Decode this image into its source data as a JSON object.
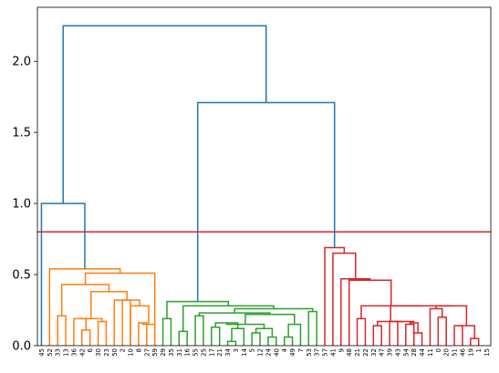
{
  "chart_data": {
    "type": "dendrogram",
    "title": "",
    "xlabel": "",
    "ylabel": "",
    "ylim": [
      0,
      2.38
    ],
    "yticks": [
      0.0,
      0.5,
      1.0,
      1.5,
      2.0
    ],
    "ytick_labels": [
      "0.0",
      "0.5",
      "1.0",
      "1.5",
      "2.0"
    ],
    "threshold": {
      "value": 0.8,
      "color": "#d62728"
    },
    "colors": {
      "orange": "#ff7f0e",
      "green": "#2ca02c",
      "red": "#d62728",
      "blue": "#1f77b4",
      "axis": "#000000"
    },
    "leaves": [
      "45",
      "52",
      "33",
      "13",
      "36",
      "42",
      "6",
      "30",
      "23",
      "50",
      "2",
      "10",
      "8",
      "27",
      "59",
      "29",
      "35",
      "31",
      "16",
      "55",
      "25",
      "17",
      "21",
      "34",
      "3",
      "14",
      "5",
      "12",
      "24",
      "40",
      "4",
      "49",
      "7",
      "53",
      "37",
      "57",
      "41",
      "9",
      "48",
      "21",
      "22",
      "32",
      "47",
      "39",
      "43",
      "54",
      "28",
      "44",
      "11",
      "0",
      "20",
      "51",
      "46",
      "19",
      "1",
      "15"
    ],
    "merges": [
      {
        "a": 2,
        "b": 3,
        "h": 1.0,
        "c": "blue"
      },
      {
        "a": 3,
        "b": 4,
        "h": 0.21,
        "c": "orange"
      },
      {
        "a": 5,
        "b": 6,
        "h": 0.12,
        "c": "orange"
      },
      {
        "a": 7,
        "b": 8,
        "h": 0.1,
        "c": "orange"
      },
      {
        "a": 8,
        "b": 9,
        "h": 0.19,
        "c": "orange"
      },
      {
        "a": 9,
        "b": 10,
        "h": 0.17,
        "c": "orange"
      },
      {
        "a": 11,
        "b": 12,
        "h": 0.32,
        "c": "orange"
      },
      {
        "a": 12,
        "b": 13,
        "h": 0.28,
        "c": "orange"
      },
      {
        "a": 13,
        "b": 14,
        "h": 0.17,
        "c": "orange"
      },
      {
        "a": 14,
        "b": 15,
        "h": 0.15,
        "c": "orange"
      },
      {
        "a": 16,
        "b": 17,
        "h": 0.19,
        "c": "green"
      },
      {
        "a": 17,
        "b": 18,
        "h": 0.31,
        "c": "green"
      },
      {
        "a": 18,
        "b": 19,
        "h": 0.1,
        "c": "green"
      },
      {
        "a": 19,
        "b": 20,
        "h": 0.22,
        "c": "green"
      },
      {
        "a": 20,
        "b": 21,
        "h": 0.2,
        "c": "green"
      },
      {
        "a": 21,
        "b": 22,
        "h": 0.22,
        "c": "green"
      },
      {
        "a": 22,
        "b": 23,
        "h": 0.16,
        "c": "green"
      },
      {
        "a": 23,
        "b": 24,
        "h": 0.13,
        "c": "green"
      },
      {
        "a": 24,
        "b": 25,
        "h": 0.12,
        "c": "green"
      },
      {
        "a": 25,
        "b": 26,
        "h": 0.14,
        "c": "green"
      },
      {
        "a": 26,
        "b": 27,
        "h": 0.03,
        "c": "green"
      },
      {
        "a": 27,
        "b": 28,
        "h": 0.12,
        "c": "green"
      },
      {
        "a": 28,
        "b": 29,
        "h": 0.09,
        "c": "green"
      },
      {
        "a": 29,
        "b": 30,
        "h": 0.06,
        "c": "green"
      },
      {
        "a": 30,
        "b": 31,
        "h": 0.06,
        "c": "green"
      },
      {
        "a": 31,
        "b": 32,
        "h": 0.15,
        "c": "green"
      },
      {
        "a": 32,
        "b": 33,
        "h": 0.26,
        "c": "green"
      },
      {
        "a": 33,
        "b": 34,
        "h": 0.24,
        "c": "green"
      },
      {
        "a": 35,
        "b": 36,
        "h": 0.69,
        "c": "red"
      },
      {
        "a": 36,
        "b": 37,
        "h": 0.65,
        "c": "red"
      },
      {
        "a": 37,
        "b": 38,
        "h": 0.47,
        "c": "red"
      },
      {
        "a": 38,
        "b": 39,
        "h": 0.46,
        "c": "red"
      },
      {
        "a": 39,
        "b": 40,
        "h": 0.4,
        "c": "red"
      },
      {
        "a": 40,
        "b": 41,
        "h": 0.19,
        "c": "red"
      },
      {
        "a": 41,
        "b": 42,
        "h": 0.28,
        "c": "red"
      },
      {
        "a": 42,
        "b": 43,
        "h": 0.15,
        "c": "red"
      },
      {
        "a": 43,
        "b": 44,
        "h": 0.14,
        "c": "red"
      },
      {
        "a": 44,
        "b": 45,
        "h": 0.17,
        "c": "red"
      },
      {
        "a": 45,
        "b": 46,
        "h": 0.16,
        "c": "red"
      },
      {
        "a": 46,
        "b": 47,
        "h": 0.09,
        "c": "red"
      },
      {
        "a": 47,
        "b": 48,
        "h": 0.28,
        "c": "red"
      },
      {
        "a": 48,
        "b": 49,
        "h": 0.26,
        "c": "red"
      },
      {
        "a": 49,
        "b": 50,
        "h": 0.2,
        "c": "red"
      },
      {
        "a": 50,
        "b": 51,
        "h": 0.19,
        "c": "red"
      },
      {
        "a": 51,
        "b": 52,
        "h": 0.28,
        "c": "red"
      },
      {
        "a": 52,
        "b": 53,
        "h": 0.14,
        "c": "red"
      },
      {
        "a": 53,
        "b": 54,
        "h": 0.05,
        "c": "red"
      },
      {
        "a": 0,
        "b": 1,
        "h": 1.0,
        "c": "blue"
      },
      {
        "a": 5,
        "b": 6,
        "h": 2.25,
        "c": "blue"
      },
      {
        "a": 18,
        "b": 36,
        "h": 1.71,
        "c": "blue"
      },
      {
        "a": 3,
        "b": 4,
        "h": 0.54,
        "c": "orange"
      },
      {
        "a": 4,
        "b": 5,
        "h": 0.51,
        "c": "orange"
      },
      {
        "a": 5,
        "b": 6,
        "h": 0.43,
        "c": "orange"
      },
      {
        "a": 6,
        "b": 8,
        "h": 0.38,
        "c": "orange"
      },
      {
        "a": 9,
        "b": 12,
        "h": 0.32,
        "c": "orange"
      },
      {
        "a": 17,
        "b": 19,
        "h": 0.31,
        "c": "green"
      },
      {
        "a": 19,
        "b": 21,
        "h": 0.28,
        "c": "green"
      },
      {
        "a": 21,
        "b": 24,
        "h": 0.22,
        "c": "green"
      },
      {
        "a": 28,
        "b": 31,
        "h": 0.22,
        "c": "green"
      },
      {
        "a": 36,
        "b": 37,
        "h": 0.69,
        "c": "red"
      },
      {
        "a": 37,
        "b": 38,
        "h": 0.65,
        "c": "red"
      },
      {
        "a": 38,
        "b": 40,
        "h": 0.47,
        "c": "red"
      },
      {
        "a": 40,
        "b": 43,
        "h": 0.46,
        "c": "red"
      },
      {
        "a": 43,
        "b": 47,
        "h": 0.28,
        "c": "red"
      },
      {
        "a": 47,
        "b": 52,
        "h": 0.28,
        "c": "red"
      }
    ]
  }
}
